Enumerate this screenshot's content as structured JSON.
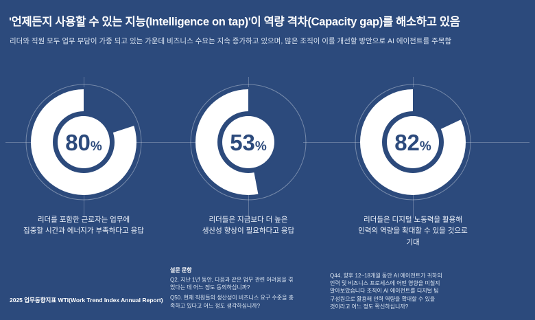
{
  "page": {
    "title": "'언제든지 사용할 수 있는 지능(Intelligence on tap)'이 역량 격차(Capacity gap)를 해소하고 있음",
    "subtitle": "리더와 직원 모두 업무 부담이 가중 되고 있는 가운데 비즈니스 수요는 지속 증가하고 있으며, 많은 조직이 이를 개선할 방안으로 AI 에이전트를 주목함",
    "source": "2025 업무동향지표 WTI(Work Trend Index Annual Report)"
  },
  "chart_data": {
    "type": "pie",
    "variant": "donut",
    "unit": "%",
    "charts": [
      {
        "value": 80,
        "label": "80%",
        "caption": "리더를 포함한 근로자는 업무에\n집중할 시간과 에너지가 부족하다고 응답"
      },
      {
        "value": 53,
        "label": "53%",
        "caption": "리더들은 지금보다 더 높은\n생산성 향상이 필요하다고 응답"
      },
      {
        "value": 82,
        "label": "82%",
        "caption": "리더들은 디지털 노동력을 활용해\n인력의 역량을 확대할 수 있을 것으로\n기대"
      }
    ],
    "colors": {
      "background": "#2c4a7c",
      "ring": "#ffffff",
      "center_disk": "#ffffff",
      "value_text": "#2c4a7c",
      "guide": "rgba(255,255,255,0.35)"
    }
  },
  "footnotes": {
    "survey_heading": "설문 문항",
    "survey_items": [
      "Q2. 지난 1년 동안, 다음과 같은 업무 관련 어려움을 겪\n었다는 데 어느 정도 동의하십니까?",
      "Q50. 현재 직원들의 생산성이 비즈니스 요구 수준을 충\n족하고 있다고 어느 정도 생각하십니까?"
    ],
    "right_note": "Q44. 향후 12~18개월 동안 AI 에이전트가 귀하의\n인력 및 비즈니스 프로세스에 어떤 영향을 미칠지\n알아보았습니다 조직이 AI 에이전트를 디지털 팀\n구성원으로 활용해 인력 역량을 확대할 수 있을\n것이라고 어느 정도 확신하십니까?"
  }
}
